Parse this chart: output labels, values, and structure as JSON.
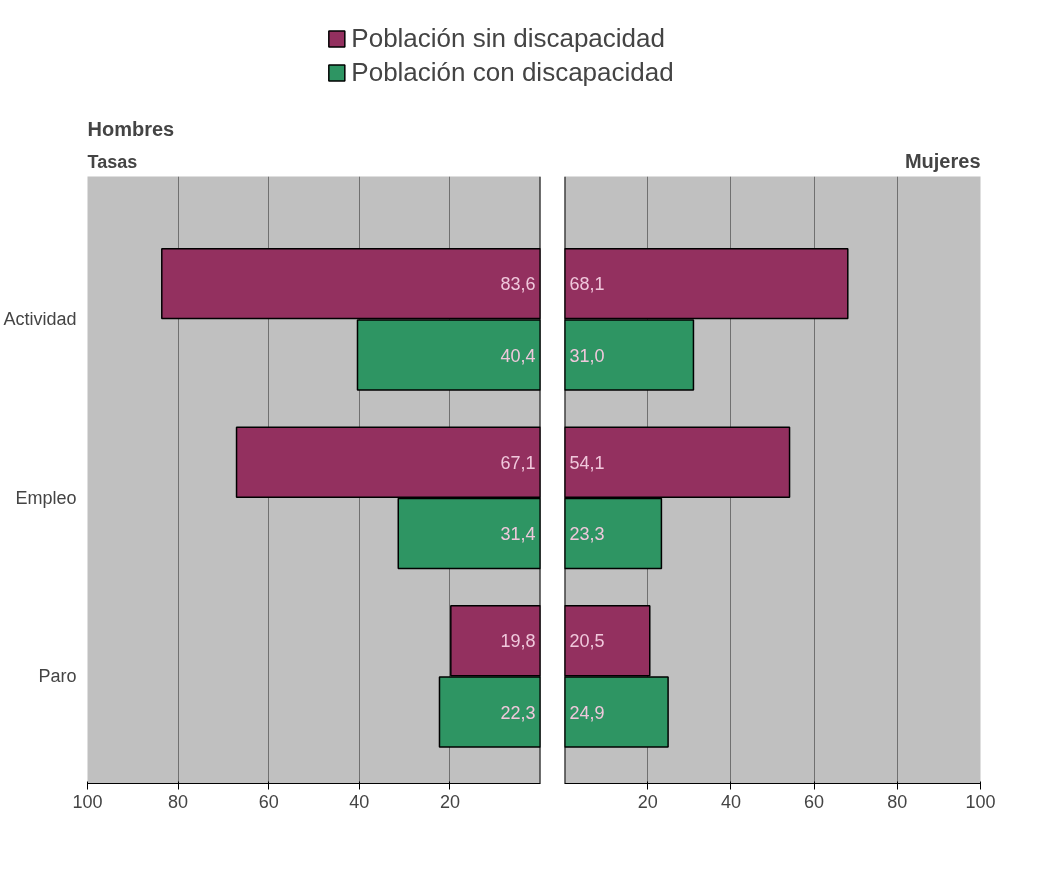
{
  "chart_data": [
    {
      "type": "bar",
      "orientation": "horizontal",
      "title": "Hombres",
      "ylabel": "Tasas",
      "categories": [
        "Actividad",
        "Empleo",
        "Paro"
      ],
      "series": [
        {
          "name": "Población sin discapacidad",
          "color": "#93305f",
          "values": [
            83.6,
            67.1,
            19.8
          ],
          "value_labels": [
            "83,6",
            "67,1",
            "19,8"
          ]
        },
        {
          "name": "Población con discapacidad",
          "color": "#2e9563",
          "values": [
            40.4,
            31.4,
            22.3
          ],
          "value_labels": [
            "40,4",
            "31,4",
            "22,3"
          ]
        }
      ],
      "xlim": [
        100,
        0
      ],
      "xticks": [
        100,
        80,
        60,
        40,
        20
      ],
      "grid": "x",
      "legend": "top"
    },
    {
      "type": "bar",
      "orientation": "horizontal",
      "title": "Mujeres",
      "categories": [
        null,
        null,
        null
      ],
      "series": [
        {
          "color": "#93305f",
          "values": [
            68.1,
            54.1,
            20.5
          ],
          "value_labels": [
            "68,1",
            "54,1",
            "20,5"
          ]
        },
        {
          "color": "#2e9563",
          "values": [
            31.0,
            23.3,
            24.9
          ],
          "value_labels": [
            "31,0",
            "23,3",
            "24,9"
          ]
        }
      ],
      "xlim": [
        0,
        100
      ],
      "xticks": [
        20,
        40,
        60,
        80,
        100
      ],
      "grid": "x",
      "tick_labels": "x"
    }
  ]
}
